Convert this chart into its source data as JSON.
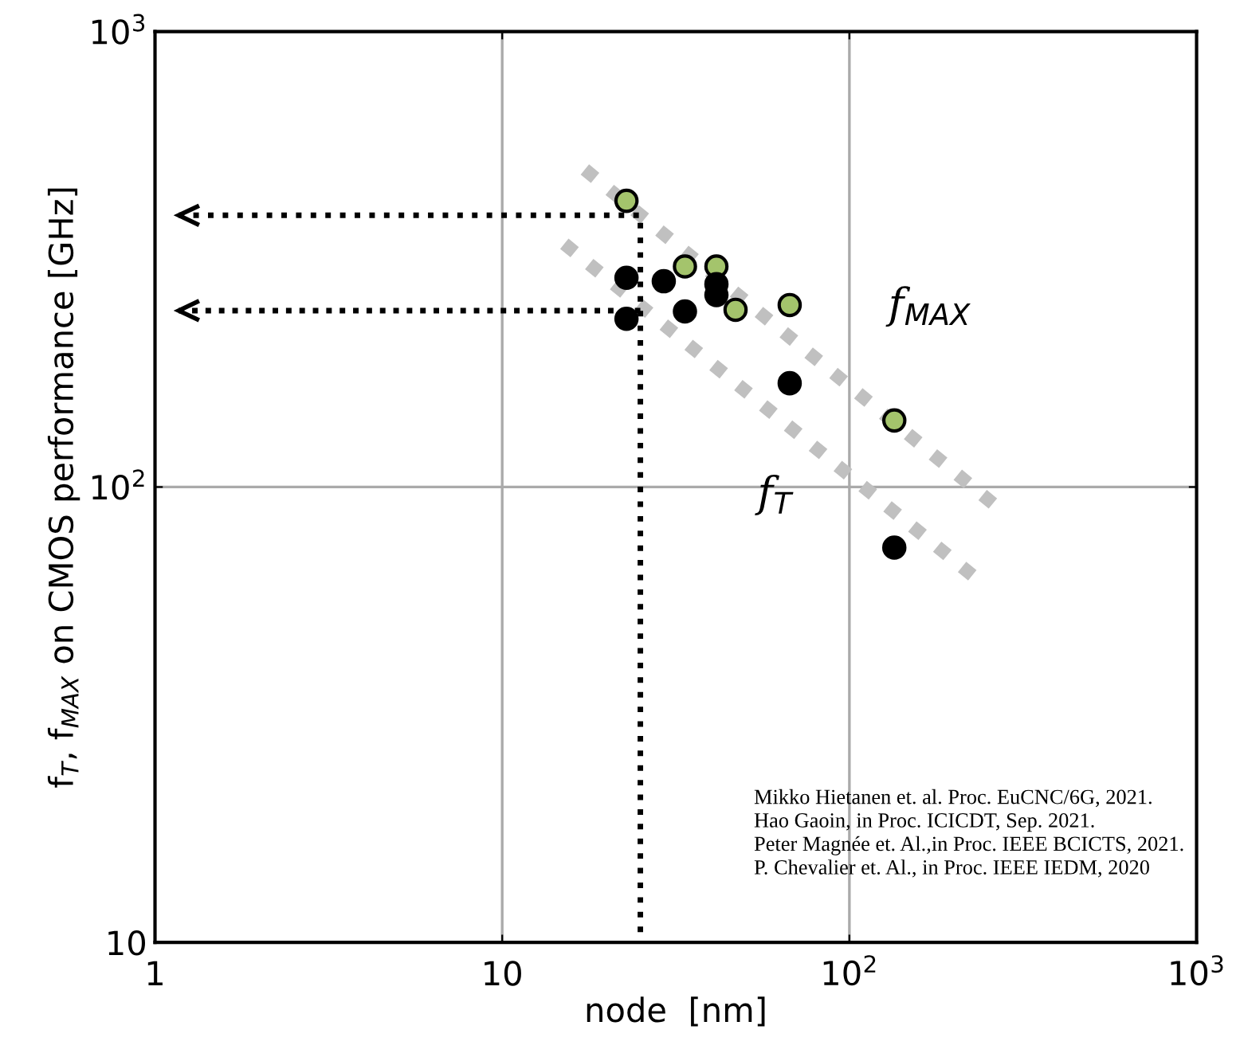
{
  "chart_data": {
    "type": "scatter",
    "xlabel": "node  [nm]",
    "ylabel": "f$_{T}$, f$_{MAX}$ on CMOS performance [GHz]",
    "log": "xy",
    "grid": true,
    "legend": false,
    "marker": "circle",
    "xlim": [
      1,
      1000
    ],
    "xticks": [
      1,
      10,
      {
        "value": 100,
        "label": "10$^{2}$"
      },
      {
        "value": 1000,
        "label": "10$^{3}$"
      }
    ],
    "ylim": [
      10,
      1000
    ],
    "yticks": [
      10,
      {
        "value": 100,
        "label": "10$^{2}$"
      },
      {
        "value": 1000,
        "label": "10$^{3}$"
      }
    ],
    "series": [
      {
        "type": "line",
        "marker": "none",
        "name": "f$_{MAX}$",
        "color": "#c0c0c0",
        "line_style": "dotted",
        "x": [
          17.3,
          259
        ],
        "values": [
          498,
          92
        ]
      },
      {
        "type": "line",
        "marker": "none",
        "name": "f$_{T}$",
        "color": "#c0c0c0",
        "line_style": "dotted",
        "x": [
          15.1,
          226
        ],
        "values": [
          342,
          64
        ]
      },
      {
        "type": "line",
        "marker": "none",
        "color": "#000000",
        "line_style": "dotted",
        "x": [
          1.17,
          25,
          25
        ],
        "values": [
          395,
          395,
          10
        ]
      },
      {
        "type": "line",
        "marker": "none",
        "color": "#000000",
        "line_style": "dotted",
        "x": [
          1.17,
          25
        ],
        "values": [
          244,
          244
        ]
      },
      {
        "color": "#a4c46c",
        "x": [
          22.8,
          33.6,
          41.4,
          47,
          67.3,
          134.7
        ],
        "values": [
          425,
          305,
          305,
          245,
          251,
          140
        ]
      },
      {
        "color": "#000000",
        "x": [
          22.8,
          22.8,
          29.2,
          33.6,
          41.4,
          41.4,
          67.3,
          134.7
        ],
        "values": [
          288,
          234,
          283,
          243,
          279,
          264,
          169,
          73.6
        ]
      }
    ],
    "annotations": [
      "Mikko Hietanen et. al. Proc. EuCNC/6G, 2021.",
      "Hao Gaoin, in Proc. ICICDT, Sep. 2021.",
      "Peter Magnée et. Al.,in Proc. IEEE BCICTS, 2021.",
      "P. Chevalier et. Al., in Proc. IEEE IEDM, 2020"
    ]
  }
}
